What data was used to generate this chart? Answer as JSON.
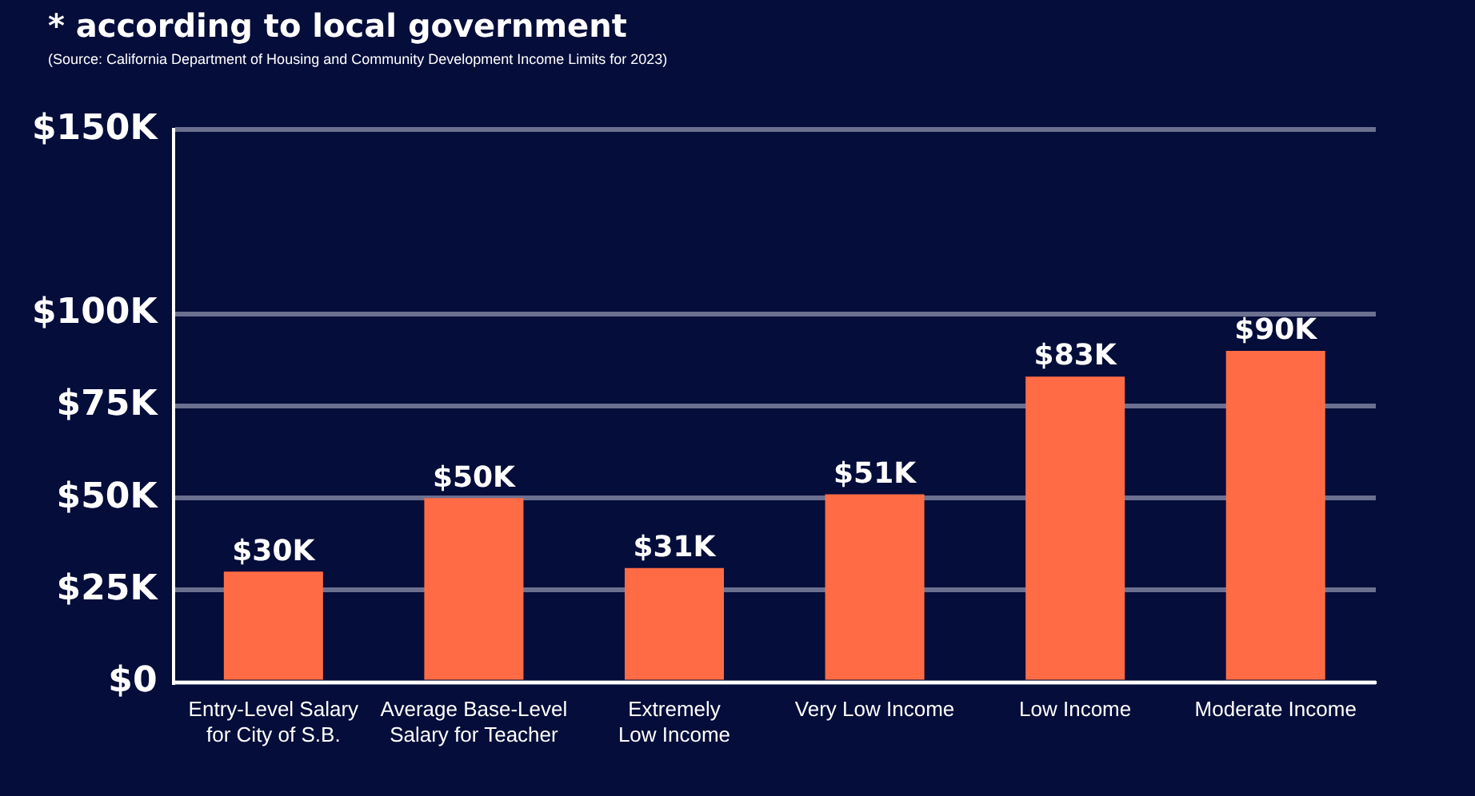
{
  "chart_data": {
    "type": "bar",
    "title": "* according to local government",
    "subtitle": "(Source: California Department of Housing and Community Development Income Limits for 2023)",
    "categories": [
      "Entry-Level Salary\nfor City of S.B.",
      "Average Base-Level\nSalary for Teacher",
      "Extremely\nLow Income",
      "Very Low Income",
      "Low Income",
      "Moderate Income"
    ],
    "values": [
      30,
      50,
      31,
      51,
      83,
      90
    ],
    "value_labels": [
      "$30K",
      "$50K",
      "$31K",
      "$51K",
      "$83K",
      "$90K"
    ],
    "color": "#ff6b45",
    "ylim": [
      0,
      150
    ],
    "yticks": [
      {
        "value": 0,
        "label": "$0"
      },
      {
        "value": 25,
        "label": "$25K"
      },
      {
        "value": 50,
        "label": "$50K"
      },
      {
        "value": 75,
        "label": "$75K"
      },
      {
        "value": 100,
        "label": "$100K"
      },
      {
        "value": 150,
        "label": "$150K"
      }
    ],
    "grid": "y",
    "legend": false
  }
}
